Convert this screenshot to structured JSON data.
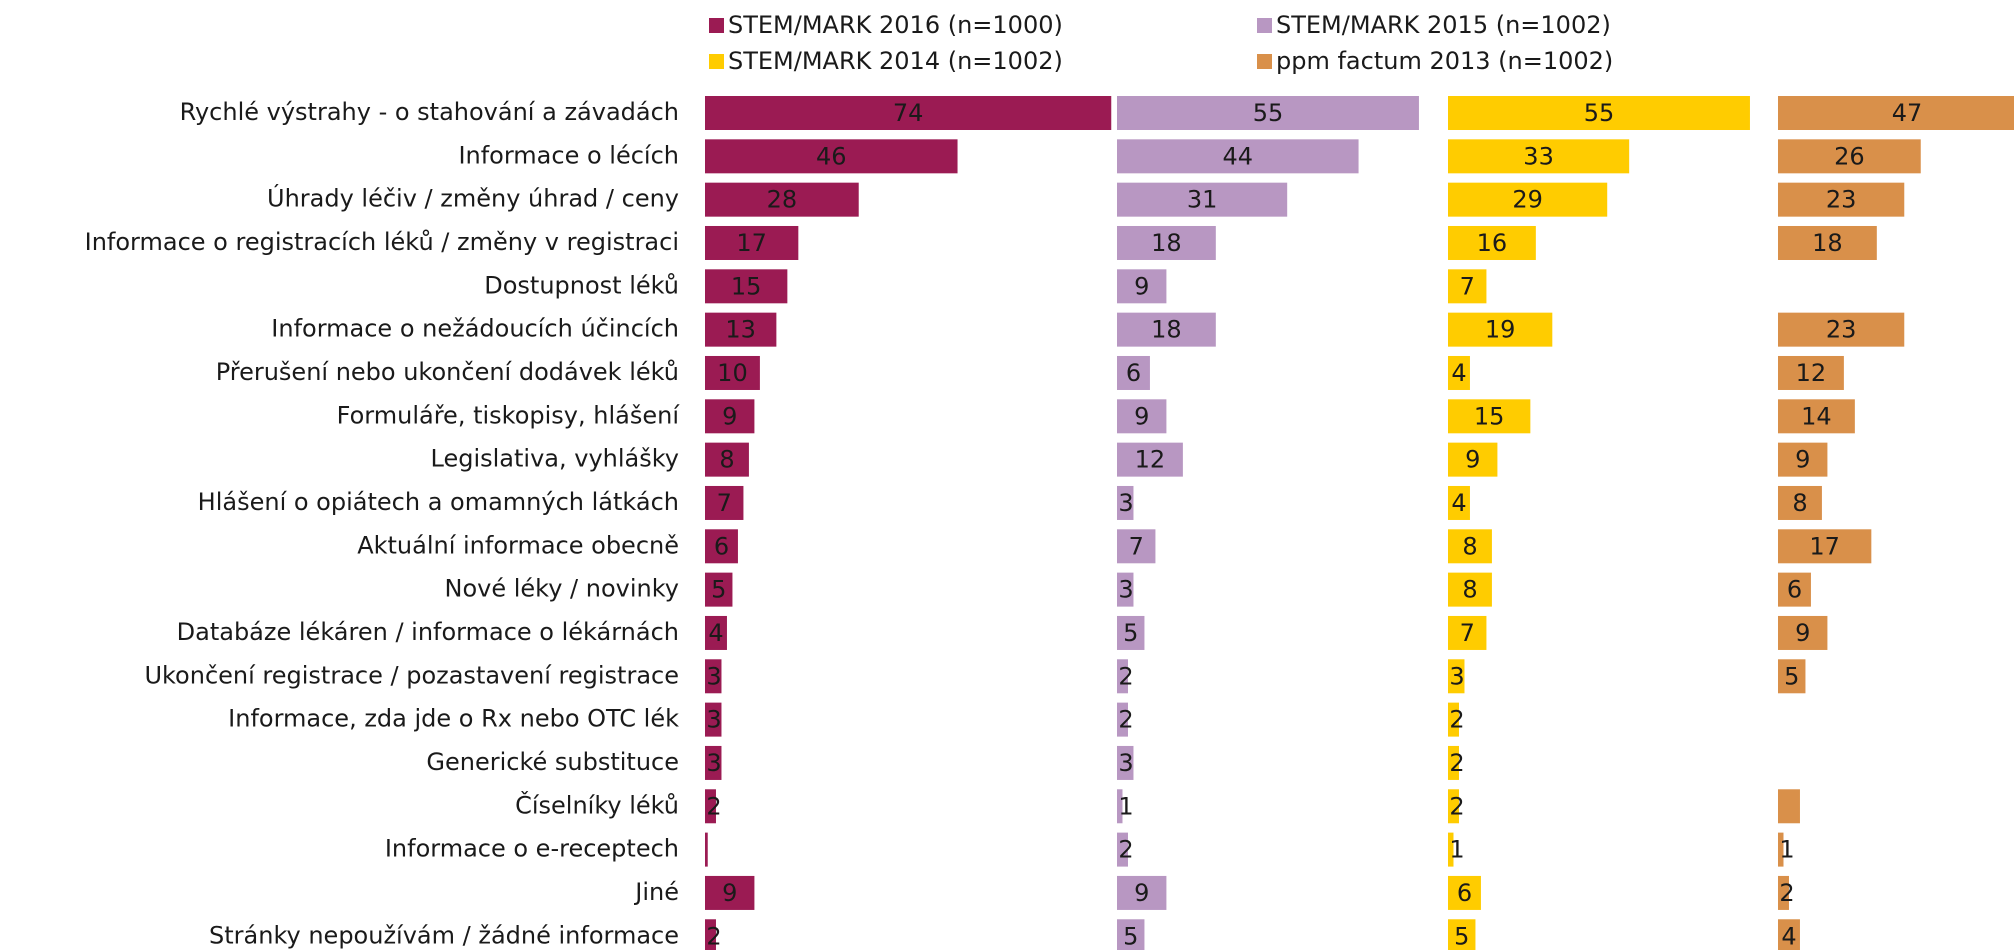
{
  "chart_data": {
    "type": "bar",
    "categories": [
      "Rychlé výstrahy - o stahování a závadách",
      "Informace o lécích",
      "Úhrady léčiv / změny úhrad / ceny",
      "Informace o registracích léků / změny v registraci",
      "Dostupnost léků",
      "Informace o nežádoucích účincích",
      "Přerušení nebo ukončení dodávek léků",
      "Formuláře, tiskopisy, hlášení",
      "Legislativa, vyhlášky",
      "Hlášení o opiátech a omamných látkách",
      "Aktuální informace obecně",
      "Nové léky / novinky",
      "Databáze lékáren / informace o lékárnách",
      "Ukončení registrace / pozastavení registrace",
      "Informace, zda jde o Rx nebo OTC lék",
      "Generické substituce",
      "Číselníky léků",
      "Informace o e-receptech",
      "Jiné",
      "Stránky nepoužívám / žádné informace"
    ],
    "series": [
      {
        "name": "STEM/MARK 2016 (n=1000)",
        "color": "#9b1b53",
        "values": [
          74,
          46,
          28,
          17,
          15,
          13,
          10,
          9,
          8,
          7,
          6,
          5,
          4,
          3,
          3,
          3,
          2,
          0.5,
          9,
          2
        ],
        "value_labels": [
          "74",
          "46",
          "28",
          "17",
          "15",
          "13",
          "10",
          "9",
          "8",
          "7",
          "6",
          "5",
          "4",
          "3",
          "3",
          "3",
          "2",
          null,
          "9",
          "2"
        ]
      },
      {
        "name": "STEM/MARK 2015 (n=1002)",
        "color": "#b897c2",
        "values": [
          55,
          44,
          31,
          18,
          9,
          18,
          6,
          9,
          12,
          3,
          7,
          3,
          5,
          2,
          2,
          3,
          1,
          2,
          9,
          5
        ]
      },
      {
        "name": "STEM/MARK 2014 (n=1002)",
        "color": "#ffcc00",
        "values": [
          55,
          33,
          29,
          16,
          7,
          19,
          4,
          15,
          9,
          4,
          8,
          8,
          7,
          3,
          2,
          2,
          2,
          1,
          6,
          5
        ]
      },
      {
        "name": "ppm factum 2013 (n=1002)",
        "color": "#d9904a",
        "values": [
          47,
          26,
          23,
          18,
          null,
          23,
          12,
          14,
          9,
          8,
          17,
          6,
          9,
          5,
          null,
          null,
          4,
          1,
          2,
          4
        ],
        "value_labels": [
          "47",
          "26",
          "23",
          "18",
          null,
          "23",
          "12",
          "14",
          "9",
          "8",
          "17",
          "6",
          "9",
          "5",
          null,
          null,
          null,
          "1",
          "2",
          "4"
        ]
      }
    ]
  }
}
